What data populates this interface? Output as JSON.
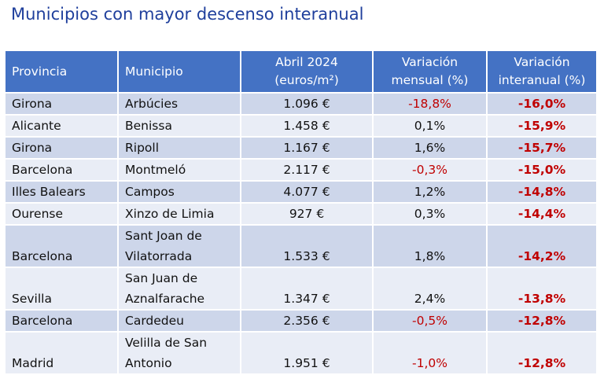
{
  "title": "Municipios con mayor descenso interanual",
  "headers": {
    "provincia": "Provincia",
    "municipio": "Municipio",
    "precio_l1": "Abril 2024",
    "precio_l2": "(euros/m²)",
    "mensual_l1": "Variación",
    "mensual_l2": "mensual (%)",
    "interanual_l1": "Variación",
    "interanual_l2": "interanual (%)"
  },
  "rows": [
    {
      "provincia": "Girona",
      "municipio": "Arbúcies",
      "precio": "1.096 €",
      "mensual": "-18,8%",
      "interanual": "-16,0%"
    },
    {
      "provincia": "Alicante",
      "municipio": "Benissa",
      "precio": "1.458 €",
      "mensual": "0,1%",
      "interanual": "-15,9%"
    },
    {
      "provincia": "Girona",
      "municipio": "Ripoll",
      "precio": "1.167 €",
      "mensual": "1,6%",
      "interanual": "-15,7%"
    },
    {
      "provincia": "Barcelona",
      "municipio": "Montmeló",
      "precio": "2.117 €",
      "mensual": "-0,3%",
      "interanual": "-15,0%"
    },
    {
      "provincia": "Illes Balears",
      "municipio": "Campos",
      "precio": "4.077 €",
      "mensual": "1,2%",
      "interanual": "-14,8%"
    },
    {
      "provincia": "Ourense",
      "municipio": "Xinzo de Limia",
      "precio": "927 €",
      "mensual": "0,3%",
      "interanual": "-14,4%"
    },
    {
      "provincia": "Barcelona",
      "municipio": "Sant Joan de Vilatorrada",
      "precio": "1.533 €",
      "mensual": "1,8%",
      "interanual": "-14,2%"
    },
    {
      "provincia": "Sevilla",
      "municipio": "San Juan de Aznalfarache",
      "precio": "1.347 €",
      "mensual": "2,4%",
      "interanual": "-13,8%"
    },
    {
      "provincia": "Barcelona",
      "municipio": "Cardedeu",
      "precio": "2.356 €",
      "mensual": "-0,5%",
      "interanual": "-12,8%"
    },
    {
      "provincia": "Madrid",
      "municipio": "Velilla de San Antonio",
      "precio": "1.951 €",
      "mensual": "-1,0%",
      "interanual": "-12,8%"
    }
  ]
}
